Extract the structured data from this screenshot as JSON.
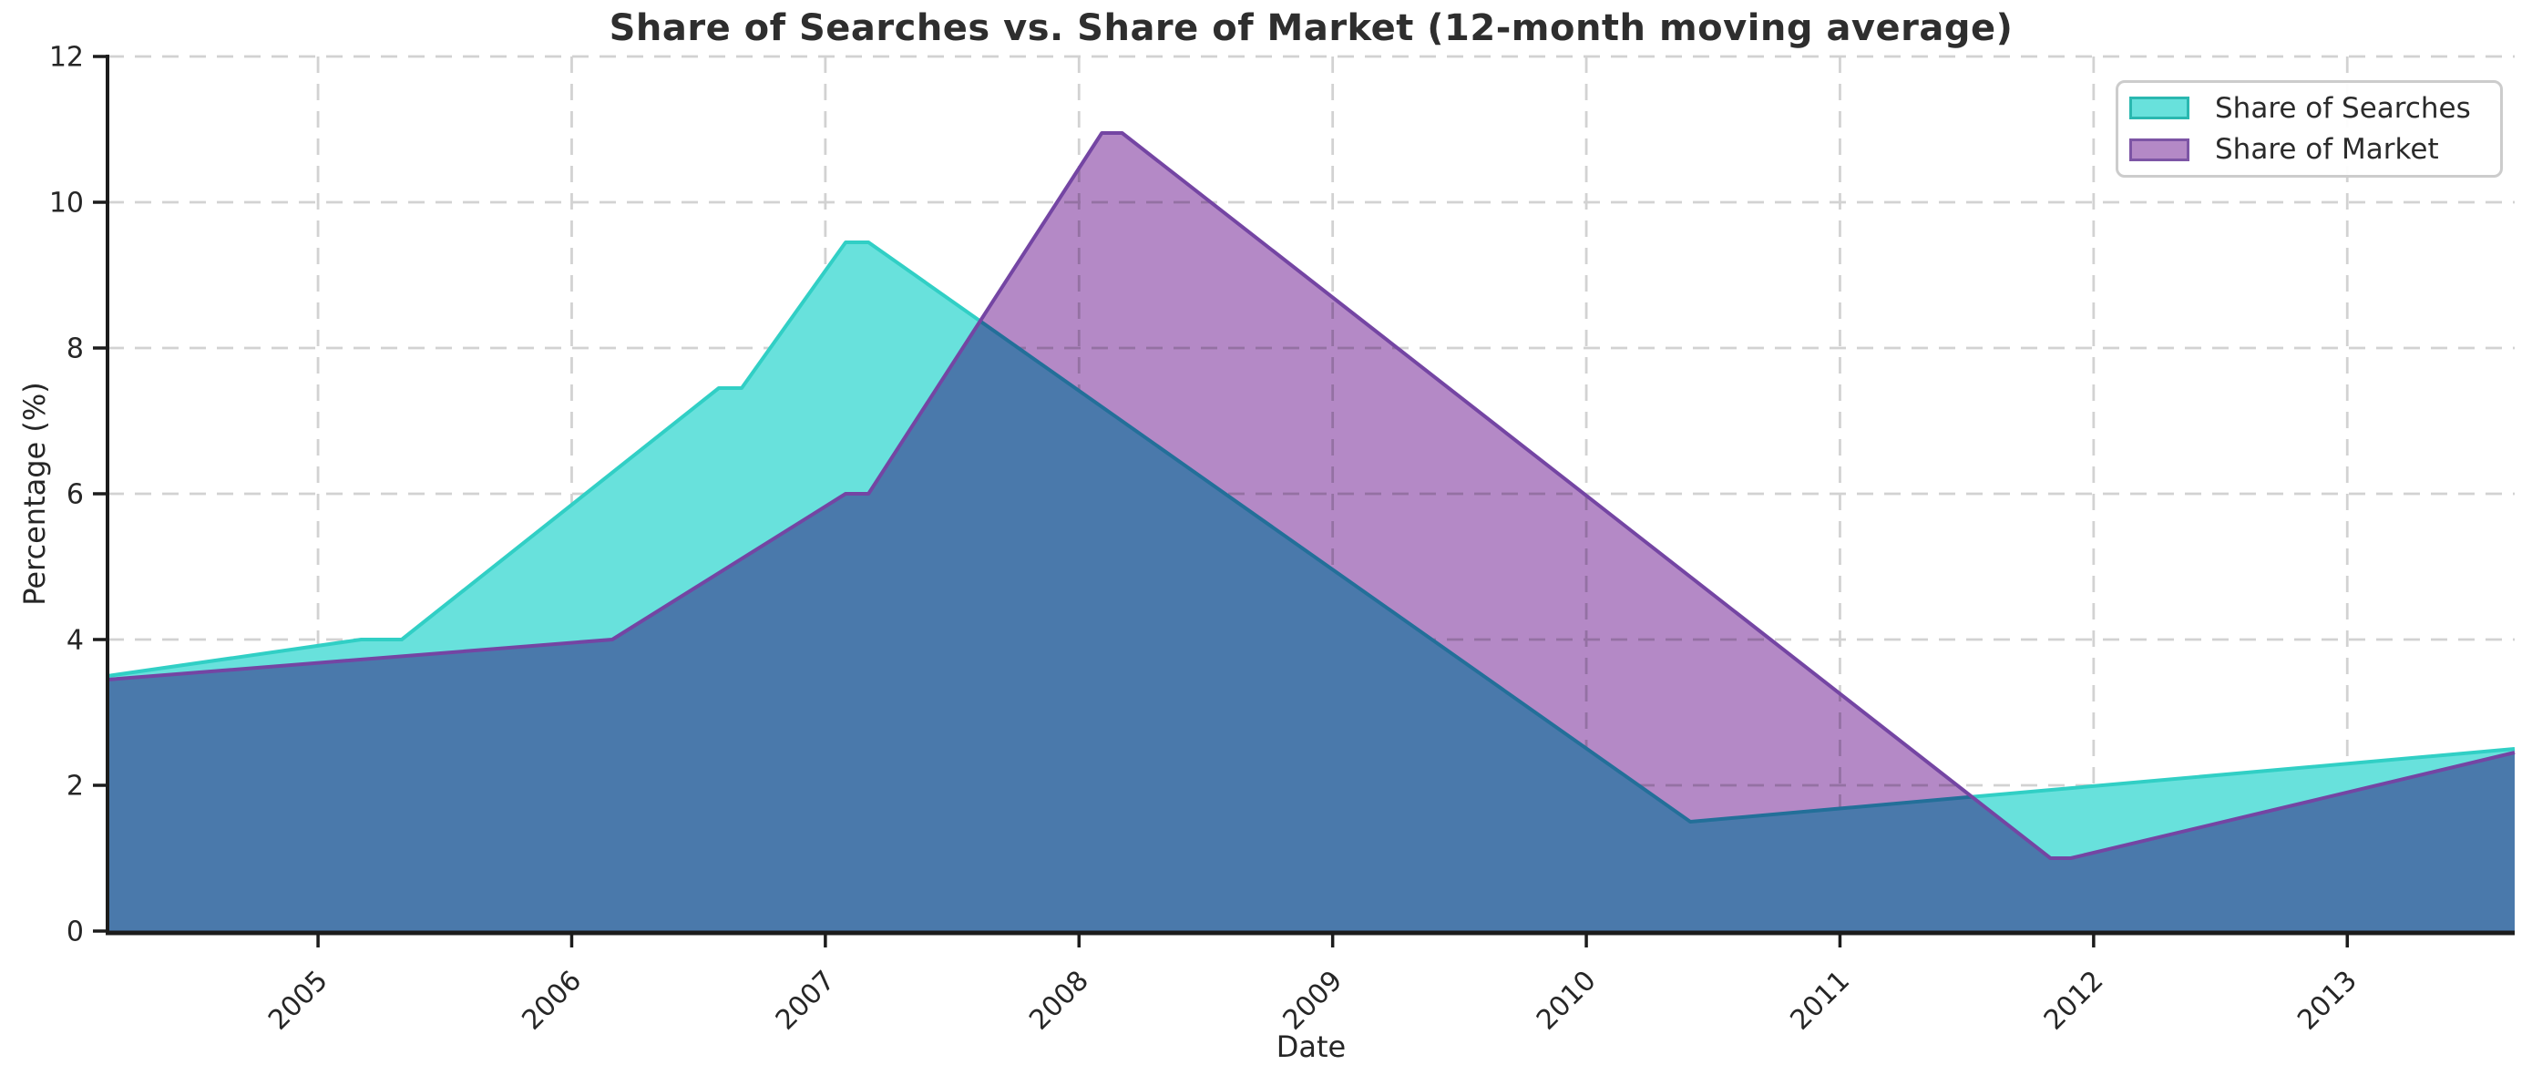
{
  "figure": {
    "title": "Share of Searches vs. Share of Market (12-month moving average)",
    "xlabel": "Date",
    "ylabel": "Percentage (%)"
  },
  "chart_data": {
    "type": "area",
    "title": "Share of Searches vs. Share of Market (12-month moving average)",
    "xlabel": "Date",
    "ylabel": "Percentage (%)",
    "x_unit": "year (decimal)",
    "xlim": [
      2004.17,
      2013.66
    ],
    "ylim": [
      0,
      12
    ],
    "xticks": [
      2005,
      2006,
      2007,
      2008,
      2009,
      2010,
      2011,
      2012,
      2013
    ],
    "yticks": [
      0,
      2,
      4,
      6,
      8,
      10,
      12
    ],
    "grid": "dashed-both-axes",
    "grid_color": "#d2d2d2",
    "legend_position": "upper right",
    "background": "#ffffff",
    "spine_color": "#1c1c1c",
    "series": [
      {
        "name": "Share of Searches",
        "line_color": "#31cfc5",
        "fill_color": "#68e1dc",
        "swatch_border": "#2ab8b0",
        "points": [
          [
            2004.17,
            3.5
          ],
          [
            2005.17,
            4.0
          ],
          [
            2005.33,
            4.0
          ],
          [
            2006.58,
            7.45
          ],
          [
            2006.67,
            7.45
          ],
          [
            2007.08,
            9.45
          ],
          [
            2007.17,
            9.45
          ],
          [
            2010.41,
            1.5
          ],
          [
            2013.66,
            2.5
          ]
        ]
      },
      {
        "name": "Share of Market",
        "line_color": "#7445a3",
        "fill_color": "#b489c6",
        "swatch_border": "#7d55a5",
        "points": [
          [
            2004.17,
            3.45
          ],
          [
            2006.16,
            4.0
          ],
          [
            2007.08,
            6.0
          ],
          [
            2007.17,
            6.0
          ],
          [
            2008.09,
            10.95
          ],
          [
            2008.17,
            10.95
          ],
          [
            2011.83,
            1.0
          ],
          [
            2011.91,
            1.0
          ],
          [
            2013.66,
            2.45
          ]
        ]
      }
    ]
  }
}
